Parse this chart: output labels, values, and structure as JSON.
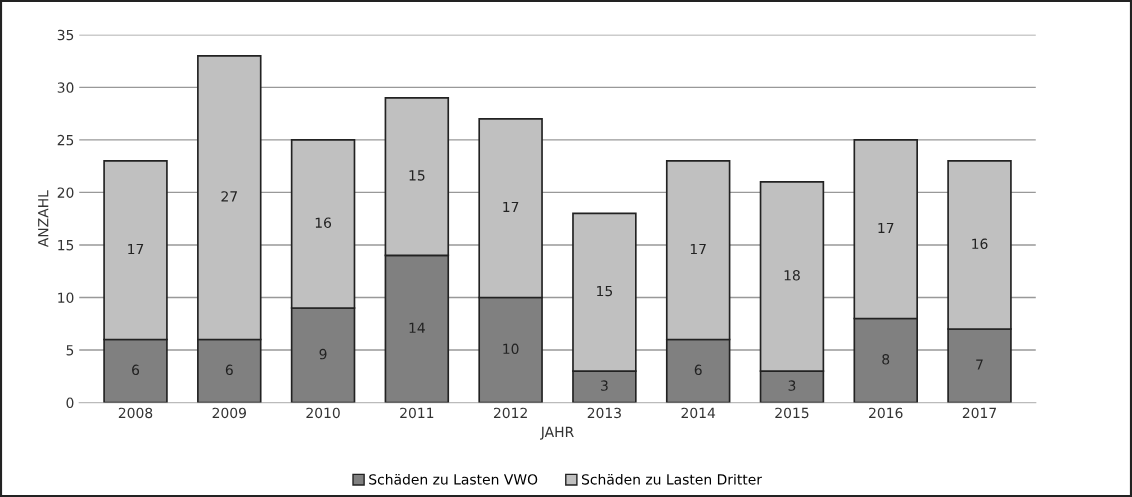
{
  "chart_data": {
    "type": "bar",
    "stacked": true,
    "xlabel": "JAHR",
    "ylabel": "ANZAHL",
    "categories": [
      "2008",
      "2009",
      "2010",
      "2011",
      "2012",
      "2013",
      "2014",
      "2015",
      "2016",
      "2017"
    ],
    "series": [
      {
        "name": "Schäden zu Lasten VWO",
        "color": "#808080",
        "values": [
          6,
          6,
          9,
          14,
          10,
          3,
          6,
          3,
          8,
          7
        ]
      },
      {
        "name": "Schäden zu Lasten Dritter",
        "color": "#c0c0c0",
        "values": [
          17,
          27,
          16,
          15,
          17,
          15,
          17,
          18,
          17,
          16
        ]
      }
    ],
    "data_labels": true,
    "ylim": [
      0,
      35
    ],
    "yticks": [
      0,
      5,
      10,
      15,
      20,
      25,
      30,
      35
    ],
    "grid": "y",
    "legend": "bottom"
  }
}
